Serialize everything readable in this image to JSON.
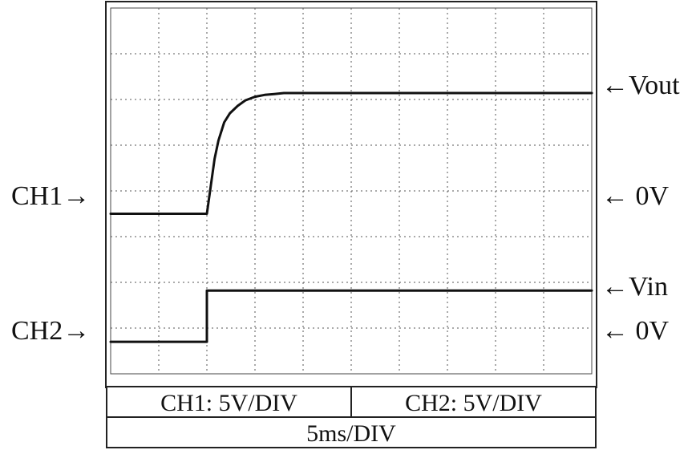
{
  "chart_data": {
    "type": "line",
    "title": "",
    "x_units": "ms",
    "y_units": "V",
    "time_per_div_ms": 5,
    "x_divisions": 10,
    "y_divisions": 8,
    "grid": true,
    "channels": [
      {
        "name": "CH1",
        "volts_per_div": 5,
        "ground_label": "0V",
        "trace_label": "Vout",
        "zero_level_div_from_top": 4.5,
        "series": {
          "x": [
            0,
            10,
            10.4,
            10.8,
            11.2,
            11.8,
            12.4,
            13.2,
            14.0,
            15.0,
            16.0,
            17.0,
            18.0,
            20.0,
            25.0,
            30.0,
            35.0,
            40.0,
            45.0,
            50.0
          ],
          "y": [
            0,
            0,
            3.0,
            6.0,
            8.0,
            10.0,
            11.0,
            11.8,
            12.4,
            12.8,
            13.0,
            13.1,
            13.2,
            13.2,
            13.2,
            13.2,
            13.2,
            13.2,
            13.2,
            13.2
          ]
        }
      },
      {
        "name": "CH2",
        "volts_per_div": 5,
        "ground_label": "0V",
        "trace_label": "Vin",
        "zero_level_div_from_top": 7.3,
        "series": {
          "x": [
            0,
            10,
            10,
            50
          ],
          "y": [
            0,
            0,
            5.6,
            5.6
          ]
        }
      }
    ]
  },
  "labels": {
    "ch1_marker": "CH1→",
    "ch2_marker": "CH2→",
    "vout": "←Vout",
    "ch1_zero": "←  0V",
    "vin": "←Vin",
    "ch2_zero": "←  0V"
  },
  "info": {
    "ch1_scale": "CH1: 5V/DIV",
    "ch2_scale": "CH2: 5V/DIV",
    "timebase": "5ms/DIV"
  }
}
